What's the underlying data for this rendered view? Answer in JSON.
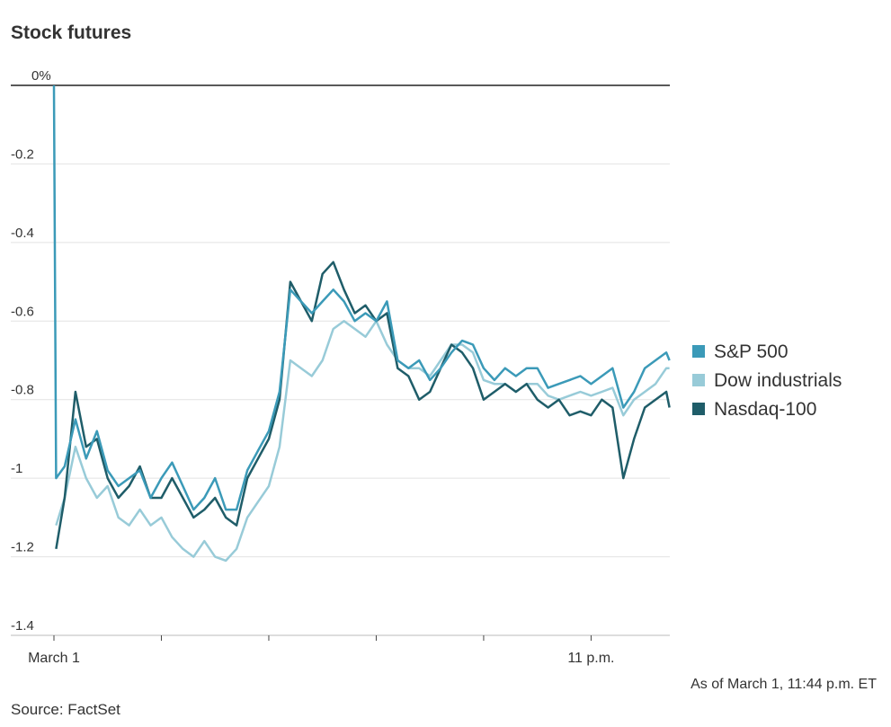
{
  "chart_data": {
    "type": "line",
    "title": "Stock futures",
    "note": "As of March 1, 11:44 p.m. ET",
    "source": "Source: FactSet",
    "x": [
      0,
      0.02,
      0.1,
      0.2,
      0.3,
      0.4,
      0.5,
      0.6,
      0.7,
      0.8,
      0.9,
      1.0,
      1.1,
      1.2,
      1.3,
      1.4,
      1.5,
      1.6,
      1.7,
      1.8,
      1.9,
      2.0,
      2.1,
      2.2,
      2.3,
      2.4,
      2.5,
      2.6,
      2.7,
      2.8,
      2.9,
      3.0,
      3.1,
      3.2,
      3.3,
      3.4,
      3.5,
      3.6,
      3.7,
      3.8,
      3.9,
      4.0,
      4.1,
      4.2,
      4.3,
      4.4,
      4.5,
      4.6,
      4.7,
      4.8,
      4.9,
      5.0,
      5.1,
      5.2,
      5.3,
      5.4,
      5.5,
      5.6,
      5.7,
      5.73
    ],
    "series": [
      {
        "name": "Dow industrials",
        "color": "#98cbd8",
        "values": [
          null,
          -1.12,
          -1.05,
          -0.92,
          -1.0,
          -1.05,
          -1.02,
          -1.1,
          -1.12,
          -1.08,
          -1.12,
          -1.1,
          -1.15,
          -1.18,
          -1.2,
          -1.16,
          -1.2,
          -1.21,
          -1.18,
          -1.1,
          -1.06,
          -1.02,
          -0.92,
          -0.7,
          -0.72,
          -0.74,
          -0.7,
          -0.62,
          -0.6,
          -0.62,
          -0.64,
          -0.6,
          -0.66,
          -0.7,
          -0.72,
          -0.72,
          -0.74,
          -0.7,
          -0.66,
          -0.66,
          -0.68,
          -0.75,
          -0.76,
          -0.76,
          -0.78,
          -0.76,
          -0.76,
          -0.79,
          -0.8,
          -0.79,
          -0.78,
          -0.79,
          -0.78,
          -0.77,
          -0.84,
          -0.8,
          -0.78,
          -0.76,
          -0.72,
          -0.72
        ]
      },
      {
        "name": "Nasdaq-100",
        "color": "#1f5d69",
        "values": [
          null,
          -1.18,
          -1.05,
          -0.78,
          -0.92,
          -0.9,
          -1.0,
          -1.05,
          -1.02,
          -0.97,
          -1.05,
          -1.05,
          -1.0,
          -1.05,
          -1.1,
          -1.08,
          -1.05,
          -1.1,
          -1.12,
          -1.0,
          -0.95,
          -0.9,
          -0.8,
          -0.5,
          -0.55,
          -0.6,
          -0.48,
          -0.45,
          -0.52,
          -0.58,
          -0.56,
          -0.6,
          -0.58,
          -0.72,
          -0.74,
          -0.8,
          -0.78,
          -0.72,
          -0.66,
          -0.68,
          -0.72,
          -0.8,
          -0.78,
          -0.76,
          -0.78,
          -0.76,
          -0.8,
          -0.82,
          -0.8,
          -0.84,
          -0.83,
          -0.84,
          -0.8,
          -0.82,
          -1.0,
          -0.9,
          -0.82,
          -0.8,
          -0.78,
          -0.82
        ]
      },
      {
        "name": "S&P 500",
        "color": "#3b9ab8",
        "values": [
          0,
          -1.0,
          -0.97,
          -0.85,
          -0.95,
          -0.88,
          -0.98,
          -1.02,
          -1.0,
          -0.98,
          -1.05,
          -1.0,
          -0.96,
          -1.02,
          -1.08,
          -1.05,
          -1.0,
          -1.08,
          -1.08,
          -0.98,
          -0.93,
          -0.88,
          -0.78,
          -0.52,
          -0.55,
          -0.58,
          -0.55,
          -0.52,
          -0.55,
          -0.6,
          -0.58,
          -0.6,
          -0.55,
          -0.7,
          -0.72,
          -0.7,
          -0.75,
          -0.72,
          -0.68,
          -0.65,
          -0.66,
          -0.72,
          -0.75,
          -0.72,
          -0.74,
          -0.72,
          -0.72,
          -0.77,
          -0.76,
          -0.75,
          -0.74,
          -0.76,
          -0.74,
          -0.72,
          -0.82,
          -0.78,
          -0.72,
          -0.7,
          -0.68,
          -0.7
        ]
      }
    ],
    "legend_order": [
      2,
      0,
      1
    ],
    "xlim": [
      0,
      5.733
    ],
    "xticks": [
      {
        "value": 0,
        "label": "March 1"
      },
      {
        "value": 1,
        "label": null
      },
      {
        "value": 2,
        "label": null
      },
      {
        "value": 3,
        "label": null
      },
      {
        "value": 4,
        "label": null
      },
      {
        "value": 5,
        "label": "11 p.m."
      }
    ],
    "ylim": [
      -1.4,
      0
    ],
    "yticks": [
      {
        "value": 0,
        "label": "0%"
      },
      -0.2,
      -0.4,
      -0.6,
      -0.8,
      -1.0,
      -1.2,
      -1.4
    ],
    "grid": true
  }
}
